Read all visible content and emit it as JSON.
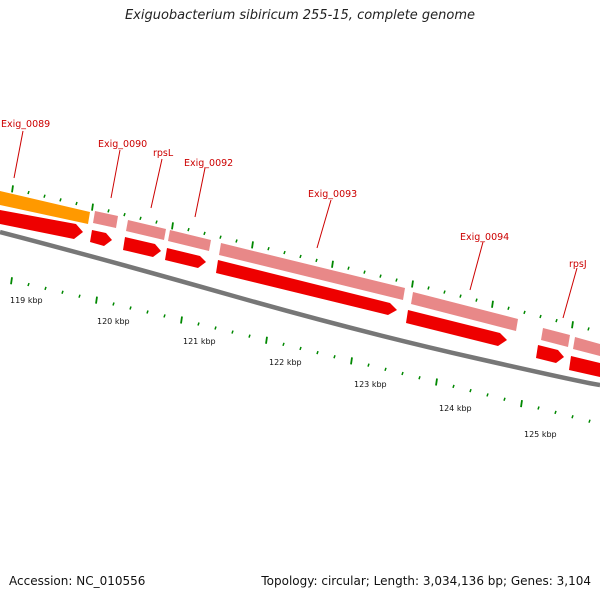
{
  "title": "Exiguobacterium sibiricum 255-15, complete genome",
  "footer": {
    "accession": "Accession: NC_010556",
    "summary": "Topology: circular; Length: 3,034,136 bp; Genes: 3,104"
  },
  "colors": {
    "backbone": "#777777",
    "cds_forward": "#e88888",
    "cds_reverse": "#ee0000",
    "highlight": "#ff9900",
    "label": "#cc0000",
    "tick": "#008800"
  },
  "genes": [
    {
      "name": "Exig_0089"
    },
    {
      "name": "Exig_0090"
    },
    {
      "name": "rpsL"
    },
    {
      "name": "Exig_0092"
    },
    {
      "name": "Exig_0093"
    },
    {
      "name": "Exig_0094"
    },
    {
      "name": "rpsJ"
    }
  ],
  "kbp_labels": [
    "119 kbp",
    "120 kbp",
    "121 kbp",
    "122 kbp",
    "123 kbp",
    "124 kbp",
    "125 kbp"
  ]
}
